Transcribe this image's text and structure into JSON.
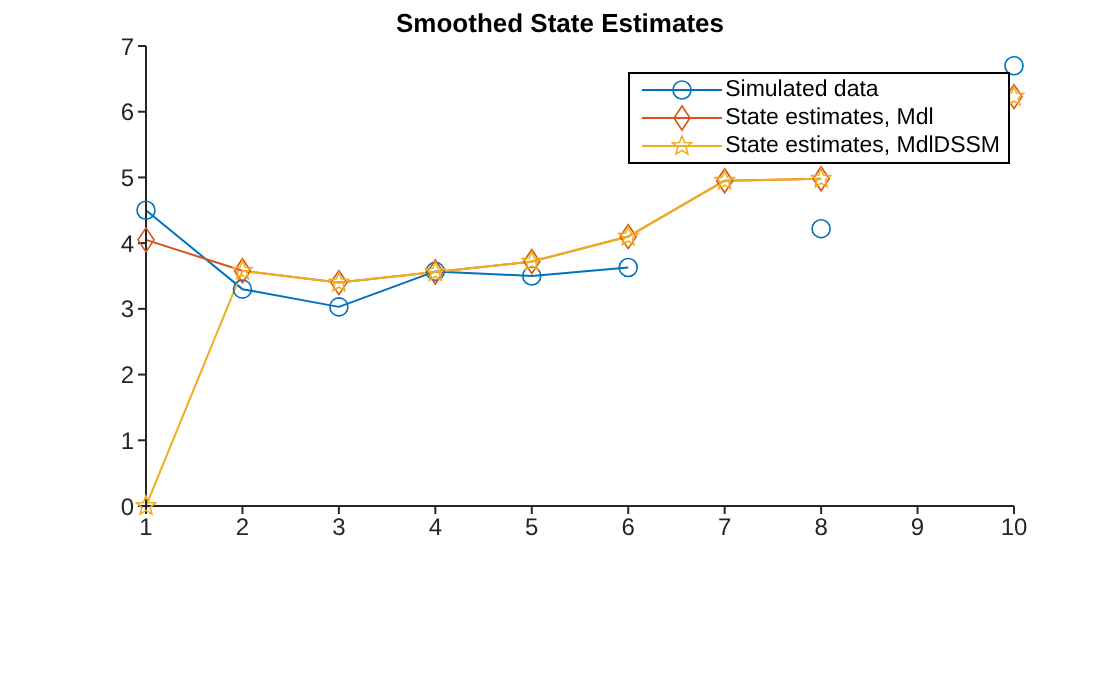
{
  "chart_data": {
    "type": "line",
    "title": "Smoothed State Estimates",
    "x": [
      1,
      2,
      3,
      4,
      5,
      6,
      7,
      8,
      9,
      10
    ],
    "xlim": [
      1,
      10
    ],
    "xticks": [
      1,
      2,
      3,
      4,
      5,
      6,
      7,
      8,
      9,
      10
    ],
    "ylim": [
      0,
      7
    ],
    "yticks": [
      0,
      1,
      2,
      3,
      4,
      5,
      6,
      7
    ],
    "grid": false,
    "legend": "top right",
    "line_style": "solid",
    "series": [
      {
        "name": "Simulated data",
        "color": "#0072bd",
        "marker": "circle",
        "values": [
          4.5,
          3.3,
          3.03,
          3.57,
          3.5,
          3.63,
          null,
          4.22,
          null,
          6.7
        ]
      },
      {
        "name": "State estimates, Mdl",
        "color": "#d95319",
        "marker": "diamond",
        "values": [
          4.05,
          3.58,
          3.4,
          3.56,
          3.72,
          4.1,
          4.95,
          4.98,
          null,
          6.23
        ]
      },
      {
        "name": "State estimates, MdlDSSM",
        "color": "#edb120",
        "marker": "star",
        "values": [
          0,
          3.58,
          3.4,
          3.56,
          3.72,
          4.1,
          4.95,
          4.98,
          null,
          6.23
        ]
      }
    ]
  }
}
